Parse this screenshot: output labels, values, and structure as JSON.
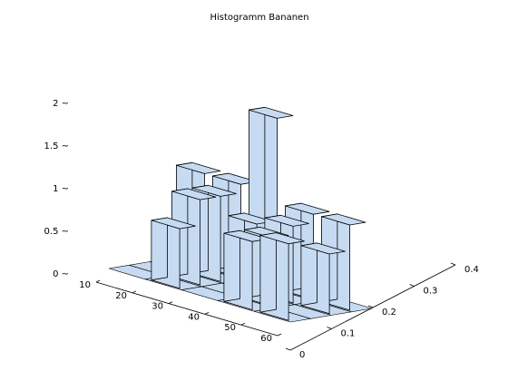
{
  "chart_data": {
    "type": "bar3d",
    "title": "Histogramm Bananen",
    "x_axis": {
      "ticks": [
        10,
        20,
        30,
        40,
        50,
        60
      ],
      "tick_labels": [
        "10",
        "20",
        "30",
        "40",
        "50",
        "60"
      ],
      "range": [
        10,
        60
      ],
      "bin_centers": [
        15,
        25,
        35,
        45,
        55
      ]
    },
    "y_axis": {
      "ticks": [
        0,
        0.1,
        0.2,
        0.3,
        0.4
      ],
      "tick_labels": [
        "0",
        "0.1",
        "0.2",
        "0.3",
        "0.4"
      ],
      "range": [
        0,
        0.4
      ],
      "bin_centers": [
        0.05,
        0.15,
        0.25,
        0.35
      ]
    },
    "z_axis": {
      "ticks": [
        0,
        0.5,
        1,
        1.5,
        2
      ],
      "tick_labels": [
        "0 ~",
        "0.5 ~",
        "1 ~",
        "1.5 ~",
        "2 ~"
      ],
      "range": [
        0,
        2
      ]
    },
    "bars": [
      {
        "x": 15,
        "y": 0.35,
        "z": 1.1
      },
      {
        "x": 25,
        "y": 0.35,
        "z": 1.1
      },
      {
        "x": 25,
        "y": 0.25,
        "z": 1
      },
      {
        "x": 25,
        "y": 0.15,
        "z": 1
      },
      {
        "x": 25,
        "y": 0.05,
        "z": 0.7
      },
      {
        "x": 35,
        "y": 0.35,
        "z": 2
      },
      {
        "x": 35,
        "y": 0.25,
        "z": 0.8
      },
      {
        "x": 45,
        "y": 0.35,
        "z": 1.0
      },
      {
        "x": 45,
        "y": 0.25,
        "z": 0.9
      },
      {
        "x": 45,
        "y": 0.15,
        "z": 0.8
      },
      {
        "x": 45,
        "y": 0.05,
        "z": 0.8
      },
      {
        "x": 55,
        "y": 0.35,
        "z": 1
      },
      {
        "x": 55,
        "y": 0.25,
        "z": 0.7
      },
      {
        "x": 55,
        "y": 0.05,
        "z": 0.9
      }
    ],
    "bar_color": "#c6dbf2",
    "edge_color": "#000000",
    "grid": false
  }
}
